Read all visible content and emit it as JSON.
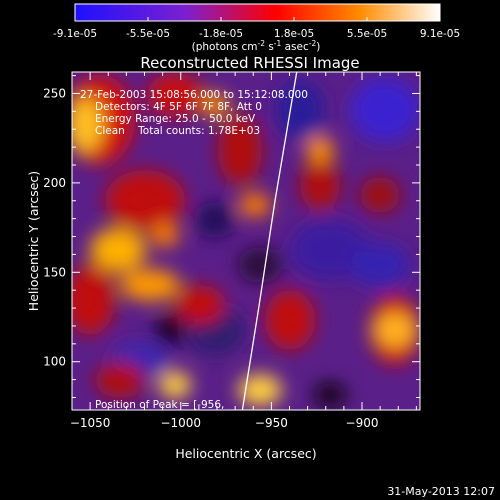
{
  "chart_data": [
    {
      "type": "bar",
      "role": "colorbar",
      "tick_labels": [
        "-9.1e-05",
        "-5.5e-05",
        "-1.8e-05",
        "1.8e-05",
        "5.5e-05",
        "9.1e-05"
      ],
      "range": [
        -9.1e-05,
        9.1e-05
      ],
      "unit_label": "(photons cm",
      "unit_parts": [
        "(photons cm",
        "-2",
        " s",
        "-1",
        " asec",
        "-2",
        ")"
      ],
      "palette": [
        "#1e10ff",
        "#7a20d0",
        "#ff0000",
        "#ff8c00",
        "#ffffff"
      ]
    },
    {
      "type": "heatmap",
      "title": "Reconstructed RHESSI Image",
      "xlabel": "Heliocentric X (arcsec)",
      "ylabel": "Heliocentric Y (arcsec)",
      "xlim": [
        -1060,
        -868
      ],
      "ylim": [
        73,
        262
      ],
      "xticks": [
        -1050,
        -1000,
        -950,
        -900
      ],
      "yticks": [
        100,
        150,
        200,
        250
      ],
      "annotations": [
        "27-Feb-2003 15:08:56.000 to 15:12:08.000",
        "Detectors: 4F 5F 6F 7F 8F, Att 0",
        "Energy Range: 25.0 - 50.0 keV",
        "Clean    Total counts: 1.78E+03"
      ],
      "peak_label": "Position of Peak = [-956,",
      "limb_points": [
        [
          -966,
          73
        ],
        [
          -957,
          130
        ],
        [
          -948,
          190
        ],
        [
          -936,
          262
        ]
      ],
      "grid": false
    }
  ],
  "footer": {
    "timestamp": "31-May-2013 12:07"
  }
}
